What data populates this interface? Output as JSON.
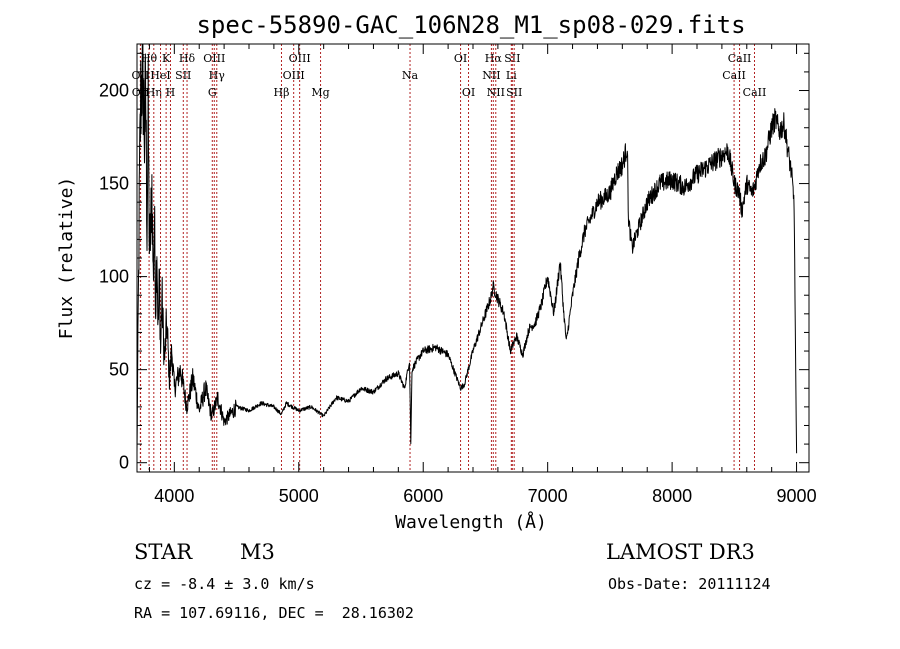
{
  "chart_data": {
    "type": "line",
    "title": "spec-55890-GAC_106N28_M1_sp08-029.fits",
    "xlabel": "Wavelength (Å)",
    "ylabel": "Flux (relative)",
    "xlim": [
      3700,
      9100
    ],
    "ylim": [
      -5,
      225
    ],
    "xticks": [
      4000,
      5000,
      6000,
      7000,
      8000,
      9000
    ],
    "yticks": [
      0,
      50,
      100,
      150,
      200
    ],
    "line_color": "#000000",
    "marker_color": "#b22222",
    "series": [
      {
        "name": "flux",
        "x": [
          3700,
          3710,
          3720,
          3730,
          3740,
          3750,
          3760,
          3770,
          3780,
          3790,
          3800,
          3810,
          3820,
          3830,
          3840,
          3850,
          3860,
          3870,
          3880,
          3890,
          3900,
          3920,
          3940,
          3960,
          3980,
          4000,
          4050,
          4100,
          4150,
          4200,
          4250,
          4300,
          4350,
          4400,
          4500,
          4600,
          4700,
          4800,
          4860,
          4900,
          5000,
          5100,
          5200,
          5300,
          5400,
          5500,
          5600,
          5700,
          5800,
          5850,
          5890,
          5900,
          5910,
          5950,
          6000,
          6100,
          6200,
          6300,
          6330,
          6400,
          6500,
          6550,
          6560,
          6600,
          6650,
          6700,
          6750,
          6800,
          6850,
          6900,
          6950,
          7000,
          7050,
          7100,
          7130,
          7150,
          7200,
          7250,
          7300,
          7350,
          7400,
          7450,
          7500,
          7550,
          7600,
          7640,
          7650,
          7680,
          7700,
          7750,
          7800,
          7850,
          7900,
          8000,
          8100,
          8200,
          8300,
          8400,
          8450,
          8500,
          8540,
          8560,
          8600,
          8640,
          8662,
          8700,
          8750,
          8800,
          8830,
          8860,
          8900,
          8930,
          8960,
          8980,
          9000
        ],
        "y": [
          5,
          80,
          150,
          195,
          210,
          205,
          175,
          200,
          130,
          185,
          115,
          125,
          150,
          100,
          130,
          85,
          120,
          70,
          100,
          60,
          90,
          55,
          75,
          45,
          60,
          40,
          50,
          30,
          45,
          28,
          40,
          25,
          35,
          22,
          30,
          28,
          32,
          30,
          26,
          32,
          28,
          30,
          25,
          35,
          33,
          40,
          38,
          45,
          48,
          40,
          55,
          10,
          50,
          55,
          60,
          62,
          58,
          40,
          42,
          60,
          80,
          90,
          95,
          88,
          80,
          60,
          68,
          58,
          72,
          75,
          85,
          100,
          80,
          108,
          80,
          65,
          90,
          110,
          125,
          132,
          140,
          142,
          145,
          155,
          160,
          170,
          130,
          115,
          120,
          130,
          140,
          145,
          150,
          152,
          148,
          155,
          160,
          165,
          168,
          150,
          145,
          135,
          150,
          145,
          148,
          160,
          165,
          180,
          185,
          178,
          182,
          168,
          155,
          140,
          5
        ]
      }
    ],
    "line_markers": [
      {
        "label": "Hθ",
        "x": 3797,
        "row": 0
      },
      {
        "label": "OII",
        "x": 3727,
        "row": 1
      },
      {
        "label": "OII",
        "x": 3729,
        "row": 2
      },
      {
        "label": "Hη",
        "x": 3835,
        "row": 2
      },
      {
        "label": "HeI",
        "x": 3889,
        "row": 1
      },
      {
        "label": "K",
        "x": 3934,
        "row": 0
      },
      {
        "label": "H",
        "x": 3969,
        "row": 2
      },
      {
        "label": "SII",
        "x": 4072,
        "row": 1
      },
      {
        "label": "Hδ",
        "x": 4102,
        "row": 0
      },
      {
        "label": "OIII",
        "x": 4321,
        "row": 0
      },
      {
        "label": "Hγ",
        "x": 4341,
        "row": 1
      },
      {
        "label": "G",
        "x": 4305,
        "row": 2
      },
      {
        "label": "Hβ",
        "x": 4861,
        "row": 2
      },
      {
        "label": "OIII",
        "x": 4959,
        "row": 1
      },
      {
        "label": "OIII",
        "x": 5007,
        "row": 0
      },
      {
        "label": "Mg",
        "x": 5175,
        "row": 2
      },
      {
        "label": "Na",
        "x": 5894,
        "row": 1
      },
      {
        "label": "OI",
        "x": 6300,
        "row": 0
      },
      {
        "label": "OI",
        "x": 6364,
        "row": 2
      },
      {
        "label": "Hα",
        "x": 6563,
        "row": 0
      },
      {
        "label": "NII",
        "x": 6548,
        "row": 1
      },
      {
        "label": "NII",
        "x": 6583,
        "row": 2
      },
      {
        "label": "SII",
        "x": 6716,
        "row": 0
      },
      {
        "label": "Li",
        "x": 6708,
        "row": 1
      },
      {
        "label": "SII",
        "x": 6731,
        "row": 2
      },
      {
        "label": "CaII",
        "x": 8542,
        "row": 0
      },
      {
        "label": "CaII",
        "x": 8498,
        "row": 1
      },
      {
        "label": "CaII",
        "x": 8662,
        "row": 2
      }
    ]
  },
  "info": {
    "object_type": "STAR",
    "subclass": "M3",
    "survey": "LAMOST DR3",
    "cz": "cz = -8.4 ± 3.0 km/s",
    "obs_date": "Obs-Date: 20111124",
    "coords": "RA = 107.69116, DEC =  28.16302"
  }
}
